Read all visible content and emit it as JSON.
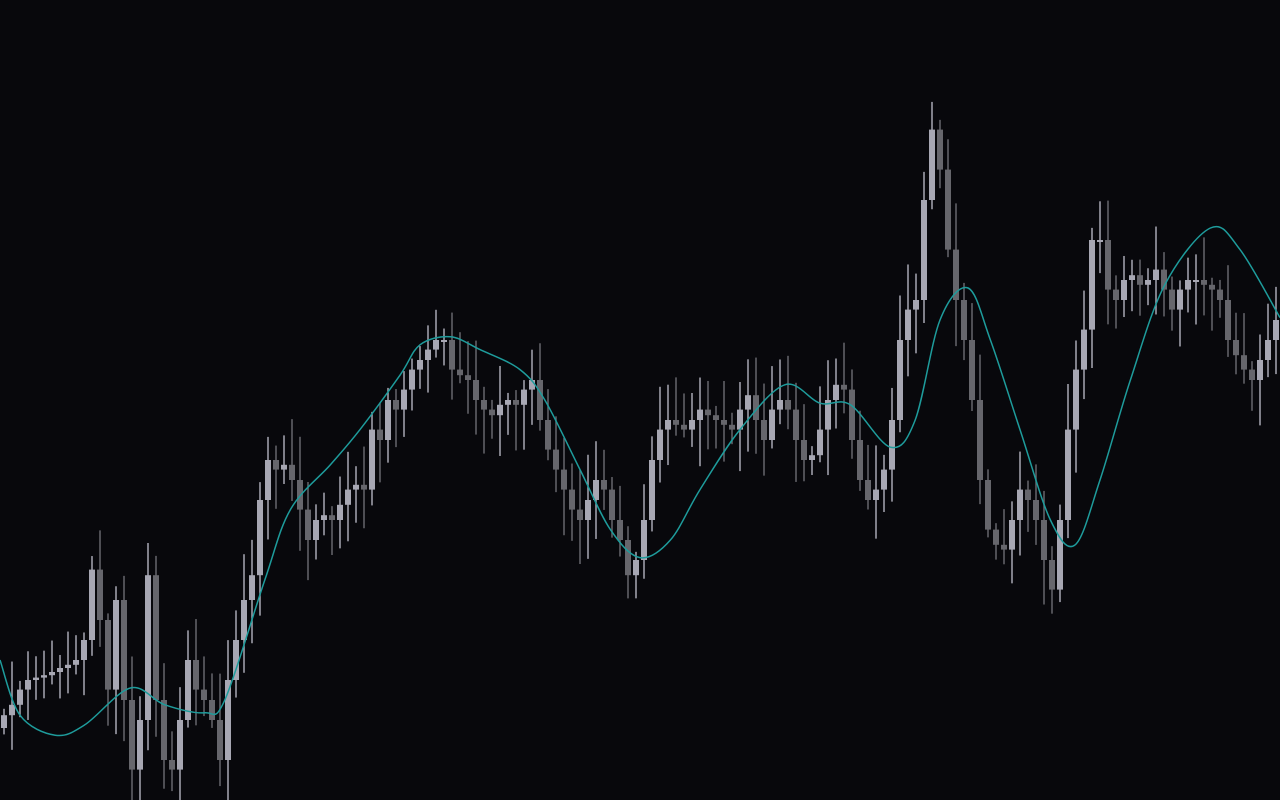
{
  "chart_data": {
    "type": "candlestick",
    "title": "",
    "xlabel": "",
    "ylabel": "",
    "ylim": [
      0,
      100
    ],
    "grid": false,
    "colors": {
      "background": "#08080c",
      "bullish": "#a7a7b3",
      "bearish": "#66666c",
      "moving_average": "#1e9c9c"
    },
    "first_open": 9,
    "close": [
      10.6,
      11.9,
      13.8,
      15,
      15.3,
      15.6,
      16,
      16.5,
      16.9,
      17.5,
      20,
      28.8,
      22.5,
      13.8,
      25,
      12.5,
      3.8,
      10,
      28.1,
      12.5,
      5,
      3.8,
      10,
      17.5,
      13.8,
      12.5,
      10,
      5,
      15,
      20,
      25,
      28.1,
      37.5,
      42.5,
      41.3,
      41.9,
      40,
      36.3,
      32.5,
      35,
      35.6,
      35,
      36.9,
      38.8,
      39.4,
      38.8,
      46.3,
      45,
      50,
      48.8,
      51.3,
      53.8,
      55,
      56.3,
      57.5,
      57.5,
      53.8,
      53.1,
      52.5,
      50,
      48.8,
      48.1,
      49.4,
      50,
      49.4,
      51.3,
      52.5,
      47.5,
      43.8,
      41.3,
      38.8,
      36.3,
      35,
      37.5,
      40,
      38.8,
      35,
      32.5,
      28.1,
      30,
      35,
      42.5,
      46.3,
      47.5,
      46.9,
      46.3,
      47.5,
      48.8,
      48.1,
      47.5,
      46.9,
      46.3,
      48.8,
      50.6,
      47.5,
      45,
      48.8,
      50,
      48.8,
      45,
      42.5,
      43.1,
      46.3,
      50,
      51.9,
      51.3,
      45,
      40,
      37.5,
      38.8,
      41.3,
      47.5,
      57.5,
      61.3,
      62.5,
      75,
      83.8,
      78.8,
      68.8,
      62.5,
      57.5,
      50,
      40,
      33.8,
      31.9,
      31.3,
      35,
      38.8,
      37.5,
      35,
      30,
      26.3,
      35,
      46.3,
      53.8,
      58.8,
      70,
      70,
      63.8,
      62.5,
      65,
      65.6,
      64.4,
      65,
      66.3,
      63.8,
      61.3,
      63.8,
      65,
      65,
      64.4,
      63.8,
      62.5,
      57.5,
      55.6,
      53.8,
      52.5,
      55,
      57.5,
      60
    ],
    "moving_average": [
      [
        0,
        17.5
      ],
      [
        2.5,
        10.6
      ],
      [
        6.9,
        8.1
      ],
      [
        10.6,
        9.4
      ],
      [
        16.3,
        14
      ],
      [
        20.6,
        11.9
      ],
      [
        25.6,
        10.9
      ],
      [
        28.1,
        12.5
      ],
      [
        33.1,
        27.5
      ],
      [
        36.3,
        36.3
      ],
      [
        41.3,
        41.9
      ],
      [
        45,
        46.3
      ],
      [
        50,
        53.1
      ],
      [
        52.5,
        56.9
      ],
      [
        56.3,
        57.9
      ],
      [
        60,
        56.3
      ],
      [
        65,
        53.8
      ],
      [
        68.1,
        50
      ],
      [
        72.5,
        41.3
      ],
      [
        76.3,
        33.8
      ],
      [
        80,
        30.3
      ],
      [
        83.8,
        32.5
      ],
      [
        87.5,
        38.8
      ],
      [
        92.5,
        46.3
      ],
      [
        98.1,
        51.9
      ],
      [
        102.5,
        49.6
      ],
      [
        106.3,
        49.4
      ],
      [
        111.3,
        44.1
      ],
      [
        114.4,
        47.5
      ],
      [
        117.5,
        60
      ],
      [
        121,
        64
      ],
      [
        123.8,
        57.5
      ],
      [
        127.5,
        46.3
      ],
      [
        131.3,
        35
      ],
      [
        134.4,
        31.9
      ],
      [
        137.5,
        40
      ],
      [
        141.3,
        52.5
      ],
      [
        145.6,
        64.4
      ],
      [
        151.3,
        71.5
      ],
      [
        155,
        68.8
      ],
      [
        160,
        60.3
      ]
    ]
  }
}
